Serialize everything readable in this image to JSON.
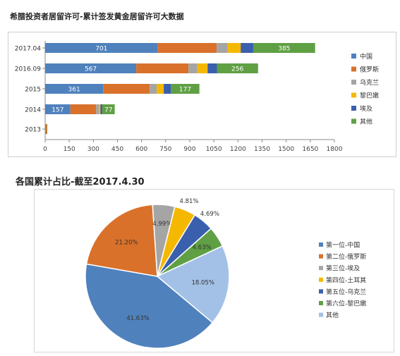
{
  "titles": {
    "top": "希腊投资者居留许可-累计签发黄金居留许可大数据",
    "pie": "各国累计占比-截至2017.4.30"
  },
  "chart_data": [
    {
      "type": "bar",
      "stacked": true,
      "orientation": "horizontal",
      "categories": [
        "2017.04",
        "2016.09",
        "2015",
        "2014",
        "2013"
      ],
      "xlim": [
        0,
        1800
      ],
      "xticks": [
        0,
        150,
        300,
        450,
        600,
        750,
        900,
        1050,
        1200,
        1350,
        1500,
        1650,
        1800
      ],
      "legend_position": "right",
      "series": [
        {
          "name": "中国",
          "color": "#4f81bd",
          "values": [
            701,
            567,
            361,
            157,
            3
          ],
          "labels": [
            "701",
            "567",
            "361",
            "157",
            ""
          ]
        },
        {
          "name": "俄罗斯",
          "color": "#d9712b",
          "values": [
            366,
            325,
            290,
            160,
            8
          ],
          "labels": [
            "",
            "",
            "",
            "",
            ""
          ]
        },
        {
          "name": "乌克兰",
          "color": "#a5a5a5",
          "values": [
            68,
            55,
            43,
            17,
            0
          ],
          "labels": [
            "",
            "",
            "",
            "",
            ""
          ]
        },
        {
          "name": "黎巴嫩",
          "color": "#f5b800",
          "values": [
            82,
            64,
            44,
            10,
            0
          ],
          "labels": [
            "",
            "",
            "",
            "",
            ""
          ]
        },
        {
          "name": "埃及",
          "color": "#3a5fad",
          "values": [
            78,
            58,
            45,
            12,
            0
          ],
          "labels": [
            "",
            "",
            "",
            "",
            ""
          ]
        },
        {
          "name": "其他",
          "color": "#5fa044",
          "values": [
            385,
            256,
            177,
            77,
            2
          ],
          "labels": [
            "385",
            "256",
            "177",
            "77",
            ""
          ]
        }
      ]
    },
    {
      "type": "pie",
      "legend_position": "right",
      "slices": [
        {
          "name": "第一位-中国",
          "value": 41.63,
          "label": "41.63%",
          "color": "#4f81bd"
        },
        {
          "name": "第二位-俄罗斯",
          "value": 21.2,
          "label": "21.20%",
          "color": "#d9712b"
        },
        {
          "name": "第三位-埃及",
          "value": 4.99,
          "label": "4.99%",
          "color": "#a5a5a5"
        },
        {
          "name": "第四位-土耳其",
          "value": 4.81,
          "label": "4.81%",
          "color": "#f5b800"
        },
        {
          "name": "第五位-乌克兰",
          "value": 4.69,
          "label": "4.69%",
          "color": "#3a5fad"
        },
        {
          "name": "第六位-黎巴嫩",
          "value": 4.63,
          "label": "4.63%",
          "color": "#5fa044"
        },
        {
          "name": "其他",
          "value": 18.05,
          "label": "18.05%",
          "color": "#a3c1e6"
        }
      ]
    }
  ]
}
